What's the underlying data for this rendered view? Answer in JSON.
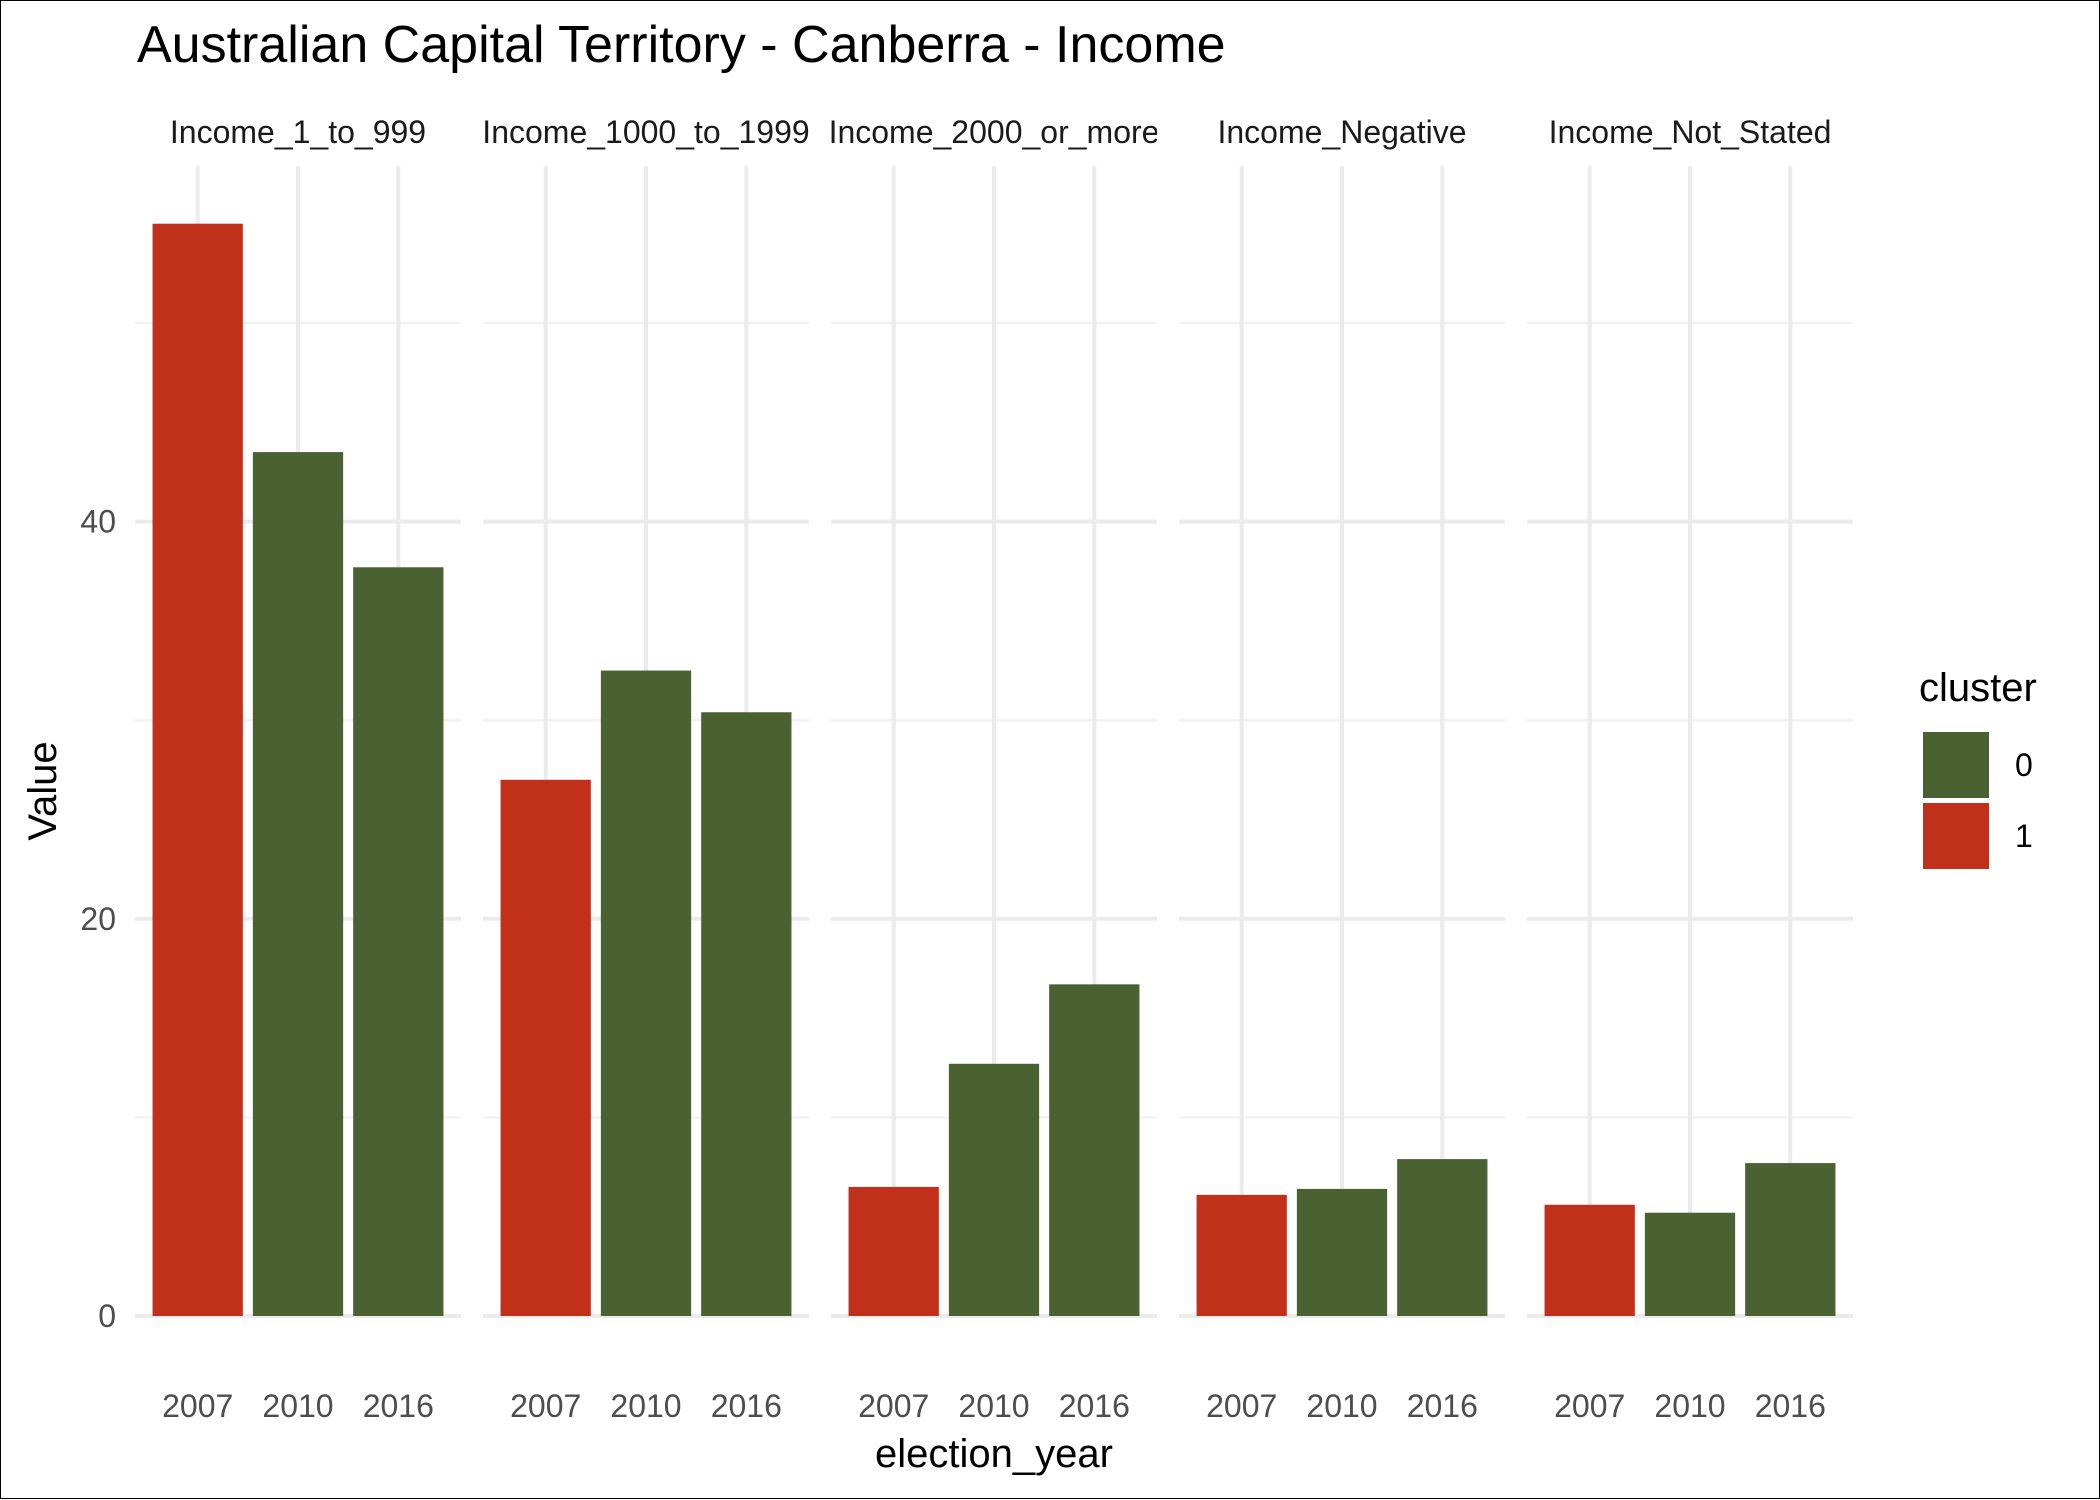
{
  "chart_data": {
    "type": "bar",
    "title": "Australian Capital Territory - Canberra - Income",
    "xlabel": "election_year",
    "ylabel": "Value",
    "ylim": [
      0,
      55
    ],
    "yticks": [
      0,
      20,
      40
    ],
    "grid": true,
    "categories": [
      "2007",
      "2010",
      "2016"
    ],
    "facets": [
      {
        "label": "Income_1_to_999",
        "values": [
          55.0,
          43.5,
          37.7
        ],
        "clusters": [
          "1",
          "0",
          "0"
        ]
      },
      {
        "label": "Income_1000_to_1999",
        "values": [
          27.0,
          32.5,
          30.4
        ],
        "clusters": [
          "1",
          "0",
          "0"
        ]
      },
      {
        "label": "Income_2000_or_more",
        "values": [
          6.5,
          12.7,
          16.7
        ],
        "clusters": [
          "1",
          "0",
          "0"
        ]
      },
      {
        "label": "Income_Negative",
        "values": [
          6.1,
          6.4,
          7.9
        ],
        "clusters": [
          "1",
          "0",
          "0"
        ]
      },
      {
        "label": "Income_Not_Stated",
        "values": [
          5.6,
          5.2,
          7.7
        ],
        "clusters": [
          "1",
          "0",
          "0"
        ]
      }
    ],
    "legend": {
      "title": "cluster",
      "placement": "right",
      "items": [
        {
          "label": "0",
          "color": "#4a6132"
        },
        {
          "label": "1",
          "color": "#c0301a"
        }
      ]
    }
  }
}
